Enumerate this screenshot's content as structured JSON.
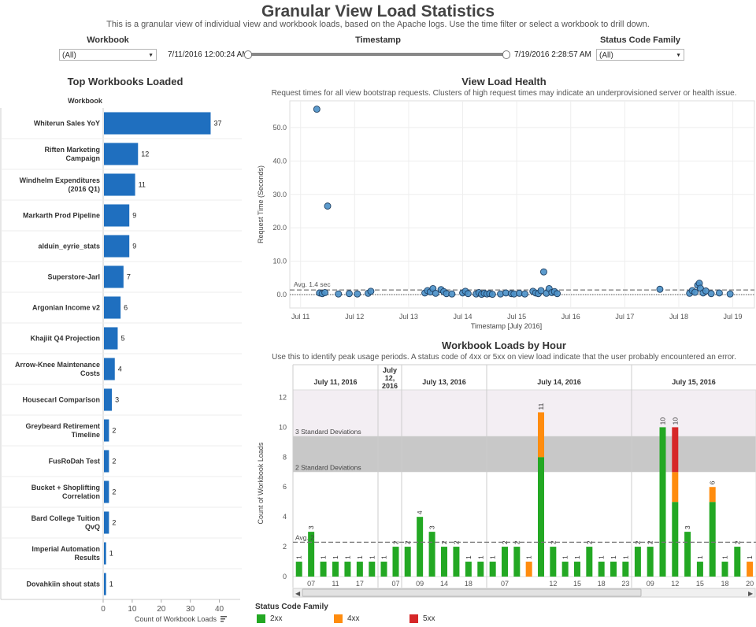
{
  "header": {
    "title": "Granular View Load Statistics",
    "subtitle": "This is a granular view of individual view and workbook loads, based on the Apache logs.  Use the time filter or select a workbook to drill down."
  },
  "filters": {
    "workbook": {
      "label": "Workbook",
      "value": "(All)"
    },
    "timestamp": {
      "label": "Timestamp",
      "start": "7/11/2016 12:00:24 AM",
      "end": "7/19/2016 2:28:57 AM",
      "range_fraction": [
        0,
        1
      ]
    },
    "status": {
      "label": "Status Code Family",
      "value": "(All)"
    }
  },
  "colors": {
    "bar": "#1f6fbf",
    "dot": "#4a90c8",
    "2xx": "#23a823",
    "4xx": "#ff8c0e",
    "5xx": "#d62728",
    "sd_band": "#c8c8c8",
    "top_band": "#f3eef3"
  },
  "chart_data": [
    {
      "type": "bar",
      "title": "Top Workbooks Loaded",
      "row_header": "Workbook",
      "xlabel": "Count of Workbook Loads",
      "xlim": [
        0,
        45
      ],
      "xticks": [
        0,
        10,
        20,
        30,
        40
      ],
      "categories": [
        "Whiterun Sales YoY",
        "Riften Marketing Campaign",
        "Windhelm Expenditures (2016 Q1)",
        "Markarth Prod Pipeline",
        "alduin_eyrie_stats",
        "Superstore-Jarl",
        "Argonian Income v2",
        "Khajiit Q4 Projection",
        "Arrow-Knee Maintenance Costs",
        "Housecarl Comparison",
        "Greybeard Retirement Timeline",
        "FusRoDah Test",
        "Bucket + Shoplifting Correlation",
        "Bard College Tuition QvQ",
        "Imperial Automation Results",
        "Dovahkiin shout stats"
      ],
      "values": [
        37,
        12,
        11,
        9,
        9,
        7,
        6,
        5,
        4,
        3,
        2,
        2,
        2,
        2,
        1,
        1
      ]
    },
    {
      "type": "scatter",
      "title": "View Load Health",
      "subtitle": "Request times for all view bootstrap requests.  Clusters of high request times may indicate an underprovisioned server or health issue.",
      "xlabel": "Timestamp [July 2016]",
      "ylabel": "Request Time (Seconds)",
      "xlim": [
        10.8,
        19.4
      ],
      "ylim": [
        -4,
        58
      ],
      "xticks": [
        11,
        12,
        13,
        14,
        15,
        16,
        17,
        18,
        19
      ],
      "xtick_labels": [
        "Jul 11",
        "Jul 12",
        "Jul 13",
        "Jul 14",
        "Jul 15",
        "Jul 16",
        "Jul 17",
        "Jul 18",
        "Jul 19"
      ],
      "yticks": [
        0,
        10,
        20,
        30,
        40,
        50
      ],
      "ytick_labels": [
        "0.0",
        "10.0",
        "20.0",
        "30.0",
        "40.0",
        "50.0"
      ],
      "avg_label": "Avg. 1.4 sec",
      "avg_value": 1.4,
      "points": [
        [
          11.3,
          55.5
        ],
        [
          11.5,
          26.5
        ],
        [
          11.35,
          0.5
        ],
        [
          11.4,
          0.3
        ],
        [
          11.45,
          0.6
        ],
        [
          11.7,
          0.2
        ],
        [
          11.9,
          0.3
        ],
        [
          12.05,
          0.2
        ],
        [
          12.25,
          0.4
        ],
        [
          12.3,
          1.0
        ],
        [
          13.3,
          0.5
        ],
        [
          13.35,
          1.2
        ],
        [
          13.4,
          0.8
        ],
        [
          13.45,
          1.8
        ],
        [
          13.5,
          0.4
        ],
        [
          13.6,
          1.5
        ],
        [
          13.65,
          0.9
        ],
        [
          13.7,
          0.3
        ],
        [
          13.8,
          0.2
        ],
        [
          14.0,
          0.5
        ],
        [
          14.05,
          1.0
        ],
        [
          14.1,
          0.3
        ],
        [
          14.25,
          0.2
        ],
        [
          14.3,
          0.6
        ],
        [
          14.35,
          0.1
        ],
        [
          14.4,
          0.4
        ],
        [
          14.45,
          0.2
        ],
        [
          14.5,
          0.3
        ],
        [
          14.55,
          0.1
        ],
        [
          14.7,
          0.2
        ],
        [
          14.8,
          0.5
        ],
        [
          14.9,
          0.3
        ],
        [
          14.95,
          0.2
        ],
        [
          15.05,
          0.4
        ],
        [
          15.15,
          0.2
        ],
        [
          15.3,
          1.0
        ],
        [
          15.35,
          0.5
        ],
        [
          15.4,
          0.3
        ],
        [
          15.45,
          1.2
        ],
        [
          15.5,
          6.8
        ],
        [
          15.55,
          0.4
        ],
        [
          15.6,
          1.8
        ],
        [
          15.65,
          0.6
        ],
        [
          15.7,
          0.9
        ],
        [
          15.75,
          0.3
        ],
        [
          17.65,
          1.6
        ],
        [
          18.2,
          0.4
        ],
        [
          18.25,
          1.2
        ],
        [
          18.3,
          0.7
        ],
        [
          18.35,
          2.8
        ],
        [
          18.38,
          3.4
        ],
        [
          18.4,
          1.9
        ],
        [
          18.45,
          0.5
        ],
        [
          18.5,
          1.1
        ],
        [
          18.6,
          0.3
        ],
        [
          18.75,
          0.5
        ],
        [
          18.95,
          0.2
        ]
      ]
    },
    {
      "type": "bar",
      "title": "Workbook Loads by Hour",
      "subtitle": "Use this to identify peak usage periods.  A status code of 4xx or 5xx on view load indicate that the user probably encountered an error.",
      "ylabel": "Count of Workbook Loads",
      "ylim": [
        0,
        12.5
      ],
      "yticks": [
        0,
        2,
        4,
        6,
        8,
        10,
        12
      ],
      "avg_label": "Avg. 2",
      "avg_value": 2.3,
      "sd2_label": "2 Standard Deviations",
      "sd3_label": "3 Standard Deviations",
      "sd2_value": 7.0,
      "sd3_value": 9.4,
      "days": [
        {
          "label": "July 11, 2016",
          "first_bar": 0,
          "count": 7
        },
        {
          "label": "July 12, 2016",
          "first_bar": 7,
          "count": 2
        },
        {
          "label": "July 13, 2016",
          "first_bar": 9,
          "count": 7
        },
        {
          "label": "July 14, 2016",
          "first_bar": 16,
          "count": 12
        },
        {
          "label": "July 15, 2016",
          "first_bar": 28,
          "count": 10
        }
      ],
      "day_label_lines": [
        [
          "July 11, 2016"
        ],
        [
          "July",
          "12,",
          "2016"
        ],
        [
          "July 13, 2016"
        ],
        [
          "July 14, 2016"
        ],
        [
          "July 15, 2016"
        ]
      ],
      "x_tick_labels": [
        "07",
        "11",
        "17",
        "07",
        "09",
        "14",
        "18",
        "07",
        "12",
        "15",
        "18",
        "23",
        "09",
        "12",
        "15",
        "18",
        "20"
      ],
      "x_tick_bars": [
        1,
        3,
        5,
        8,
        10,
        12,
        14,
        17,
        21,
        23,
        25,
        27,
        29,
        31,
        33,
        35,
        37
      ],
      "series_keys": [
        "2xx",
        "4xx",
        "5xx"
      ],
      "bars": [
        {
          "total": 1,
          "2xx": 1,
          "4xx": 0,
          "5xx": 0
        },
        {
          "total": 3,
          "2xx": 3,
          "4xx": 0,
          "5xx": 0
        },
        {
          "total": 1,
          "2xx": 1,
          "4xx": 0,
          "5xx": 0
        },
        {
          "total": 1,
          "2xx": 1,
          "4xx": 0,
          "5xx": 0
        },
        {
          "total": 1,
          "2xx": 1,
          "4xx": 0,
          "5xx": 0
        },
        {
          "total": 1,
          "2xx": 1,
          "4xx": 0,
          "5xx": 0
        },
        {
          "total": 1,
          "2xx": 1,
          "4xx": 0,
          "5xx": 0
        },
        {
          "total": 1,
          "2xx": 1,
          "4xx": 0,
          "5xx": 0
        },
        {
          "total": 2,
          "2xx": 2,
          "4xx": 0,
          "5xx": 0
        },
        {
          "total": 2,
          "2xx": 2,
          "4xx": 0,
          "5xx": 0
        },
        {
          "total": 4,
          "2xx": 4,
          "4xx": 0,
          "5xx": 0
        },
        {
          "total": 3,
          "2xx": 3,
          "4xx": 0,
          "5xx": 0
        },
        {
          "total": 2,
          "2xx": 2,
          "4xx": 0,
          "5xx": 0
        },
        {
          "total": 2,
          "2xx": 2,
          "4xx": 0,
          "5xx": 0
        },
        {
          "total": 1,
          "2xx": 1,
          "4xx": 0,
          "5xx": 0
        },
        {
          "total": 1,
          "2xx": 1,
          "4xx": 0,
          "5xx": 0
        },
        {
          "total": 1,
          "2xx": 1,
          "4xx": 0,
          "5xx": 0
        },
        {
          "total": 2,
          "2xx": 2,
          "4xx": 0,
          "5xx": 0
        },
        {
          "total": 2,
          "2xx": 2,
          "4xx": 0,
          "5xx": 0
        },
        {
          "total": 1,
          "2xx": 0,
          "4xx": 1,
          "5xx": 0
        },
        {
          "total": 11,
          "2xx": 8,
          "4xx": 3,
          "5xx": 0
        },
        {
          "total": 2,
          "2xx": 2,
          "4xx": 0,
          "5xx": 0
        },
        {
          "total": 1,
          "2xx": 1,
          "4xx": 0,
          "5xx": 0
        },
        {
          "total": 1,
          "2xx": 1,
          "4xx": 0,
          "5xx": 0
        },
        {
          "total": 2,
          "2xx": 2,
          "4xx": 0,
          "5xx": 0
        },
        {
          "total": 1,
          "2xx": 1,
          "4xx": 0,
          "5xx": 0
        },
        {
          "total": 1,
          "2xx": 1,
          "4xx": 0,
          "5xx": 0
        },
        {
          "total": 1,
          "2xx": 1,
          "4xx": 0,
          "5xx": 0
        },
        {
          "total": 2,
          "2xx": 2,
          "4xx": 0,
          "5xx": 0
        },
        {
          "total": 2,
          "2xx": 2,
          "4xx": 0,
          "5xx": 0
        },
        {
          "total": 10,
          "2xx": 10,
          "4xx": 0,
          "5xx": 0
        },
        {
          "total": 10,
          "2xx": 5,
          "4xx": 2,
          "5xx": 3
        },
        {
          "total": 3,
          "2xx": 3,
          "4xx": 0,
          "5xx": 0
        },
        {
          "total": 1,
          "2xx": 1,
          "4xx": 0,
          "5xx": 0
        },
        {
          "total": 6,
          "2xx": 5,
          "4xx": 1,
          "5xx": 0
        },
        {
          "total": 1,
          "2xx": 1,
          "4xx": 0,
          "5xx": 0
        },
        {
          "total": 2,
          "2xx": 2,
          "4xx": 0,
          "5xx": 0
        },
        {
          "total": 1,
          "2xx": 0,
          "4xx": 1,
          "5xx": 0
        }
      ]
    }
  ],
  "legend": {
    "title": "Status Code Family",
    "items": [
      {
        "label": "2xx"
      },
      {
        "label": "4xx"
      },
      {
        "label": "5xx"
      }
    ]
  }
}
